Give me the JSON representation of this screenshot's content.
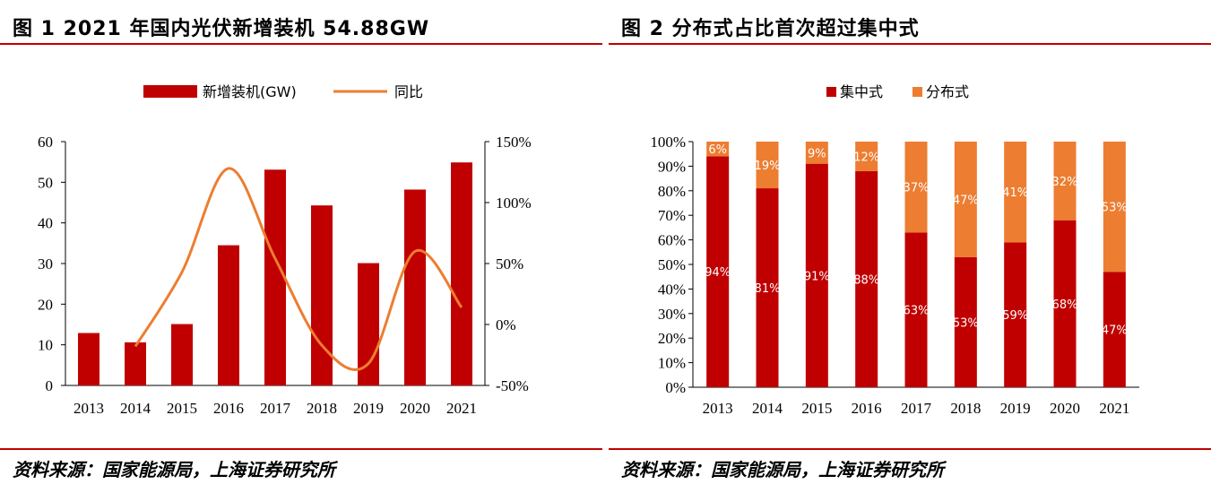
{
  "panel1": {
    "title": "图 1  2021 年国内光伏新增装机 54.88GW",
    "source": "资料来源：国家能源局，上海证券研究所"
  },
  "panel2": {
    "title": "图 2 分布式占比首次超过集中式",
    "source": "资料来源：国家能源局，上海证券研究所"
  },
  "colors": {
    "bar_red": "#c00000",
    "line_orange": "#ed7d31",
    "accent_red": "#c00000"
  },
  "chart_data": [
    {
      "type": "bar",
      "title": "图 1  2021 年国内光伏新增装机 54.88GW",
      "categories": [
        "2013",
        "2014",
        "2015",
        "2016",
        "2017",
        "2018",
        "2019",
        "2020",
        "2021"
      ],
      "series": [
        {
          "name": "新增装机(GW)",
          "type": "bar",
          "axis": "left",
          "values": [
            12.9,
            10.6,
            15.1,
            34.5,
            53.1,
            44.3,
            30.1,
            48.2,
            54.88
          ]
        },
        {
          "name": "同比",
          "type": "line",
          "axis": "right",
          "smooth": true,
          "values": [
            null,
            -18,
            43,
            128,
            54,
            -17,
            -32,
            60,
            14
          ]
        }
      ],
      "y_left": {
        "min": 0,
        "max": 60,
        "ticks": [
          "0",
          "10",
          "20",
          "30",
          "40",
          "50",
          "60"
        ]
      },
      "y_right": {
        "min": -50,
        "max": 150,
        "ticks": [
          "-50%",
          "0%",
          "50%",
          "100%",
          "150%"
        ]
      },
      "legend": "top-center",
      "grid": false
    },
    {
      "type": "bar",
      "stacked": true,
      "title": "图 2 分布式占比首次超过集中式",
      "categories": [
        "2013",
        "2014",
        "2015",
        "2016",
        "2017",
        "2018",
        "2019",
        "2020",
        "2021"
      ],
      "series": [
        {
          "name": "集中式",
          "values": [
            94,
            81,
            91,
            88,
            63,
            53,
            59,
            68,
            47
          ],
          "labels": [
            "94%",
            "81%",
            "91%",
            "88%",
            "63%",
            "53%",
            "59%",
            "68%",
            "47%"
          ]
        },
        {
          "name": "分布式",
          "values": [
            6,
            19,
            9,
            12,
            37,
            47,
            41,
            32,
            53
          ],
          "labels": [
            "6%",
            "19%",
            "9%",
            "12%",
            "37%",
            "47%",
            "41%",
            "32%",
            "53%"
          ]
        }
      ],
      "y": {
        "min": 0,
        "max": 100,
        "ticks": [
          "0%",
          "10%",
          "20%",
          "30%",
          "40%",
          "50%",
          "60%",
          "70%",
          "80%",
          "90%",
          "100%"
        ]
      },
      "legend": "top-center",
      "grid": false
    }
  ]
}
